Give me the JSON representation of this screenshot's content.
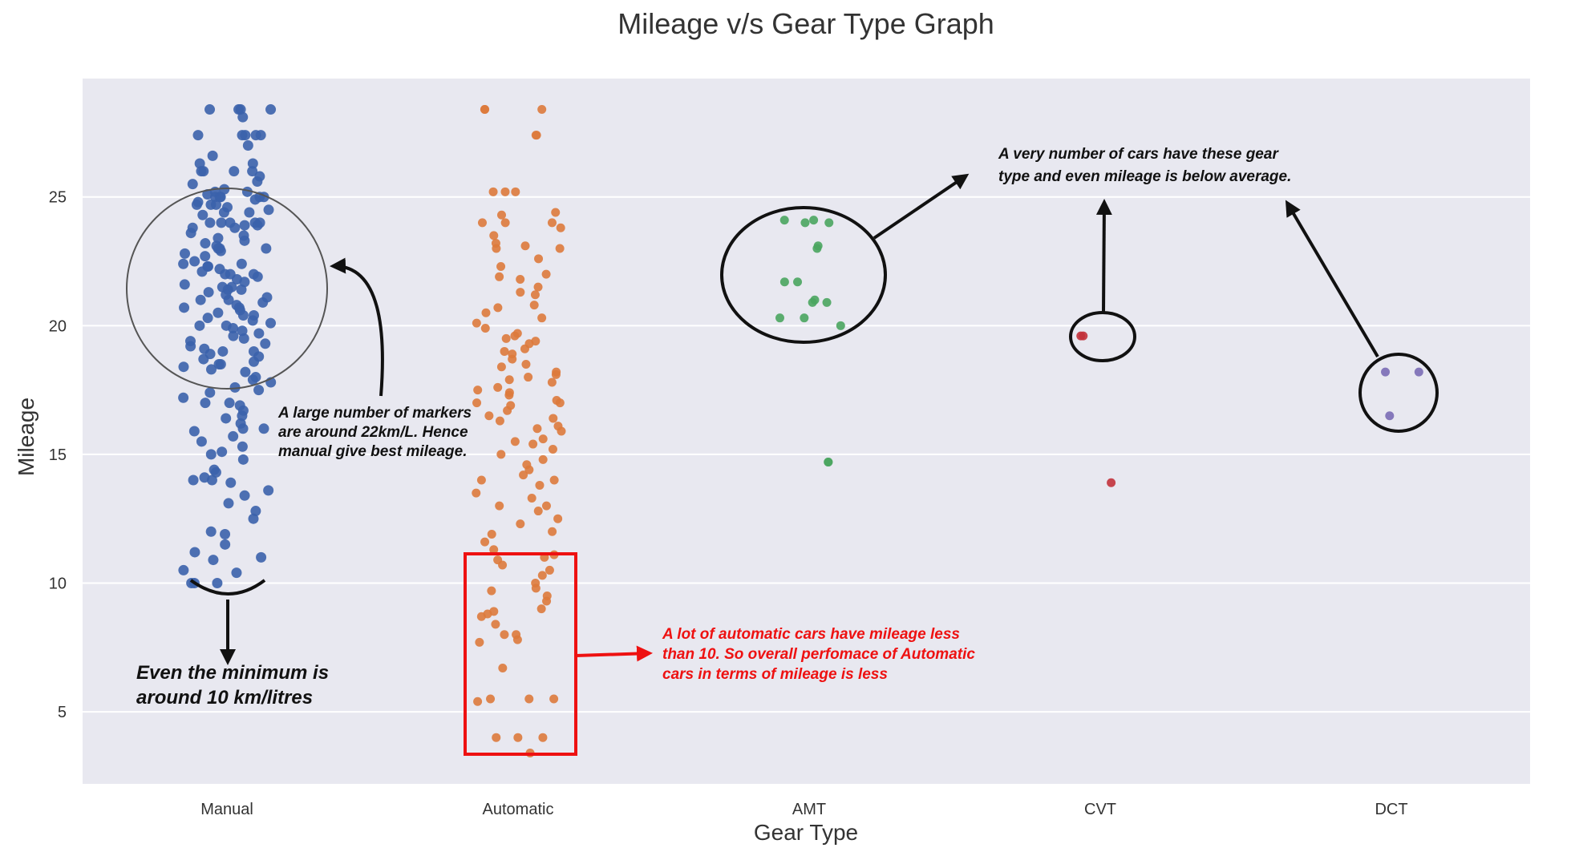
{
  "chart_data": {
    "type": "scatter",
    "title": "Mileage v/s Gear Type Graph",
    "xlabel": "Gear Type",
    "ylabel": "Mileage",
    "categories": [
      "Manual",
      "Automatic",
      "AMT",
      "CVT",
      "DCT"
    ],
    "yticks": [
      5,
      10,
      15,
      20,
      25
    ],
    "ylim": [
      2.2,
      29.6
    ],
    "grid": true,
    "colors": {
      "Manual": "#3b62ab",
      "Automatic": "#dd7a3c",
      "AMT": "#4aa55f",
      "CVT": "#c2323b",
      "DCT": "#7a6cb5",
      "background": "#e8e8f0",
      "grid": "#ffffff",
      "highlight_box": "#ee1111"
    },
    "series": [
      {
        "category": "Manual",
        "values": [
          28.4,
          28.4,
          28.4,
          28.4,
          28.1,
          27.4,
          27.4,
          27.4,
          27.4,
          27.4,
          27.0,
          26.6,
          26.3,
          26.3,
          26.0,
          26.0,
          26.0,
          26.0,
          25.8,
          25.6,
          25.5,
          25.3,
          25.2,
          25.2,
          25.1,
          25.0,
          25.0,
          25.0,
          25.0,
          25.0,
          24.9,
          24.8,
          24.7,
          24.7,
          24.7,
          24.6,
          24.5,
          24.4,
          24.4,
          24.3,
          24.0,
          24.0,
          24.0,
          24.0,
          24.0,
          23.9,
          23.9,
          23.8,
          23.8,
          23.6,
          23.5,
          23.4,
          23.3,
          23.2,
          23.1,
          23.0,
          23.0,
          23.0,
          22.9,
          22.8,
          22.7,
          22.5,
          22.4,
          22.4,
          22.3,
          22.3,
          22.2,
          22.1,
          22.0,
          22.0,
          22.0,
          21.9,
          21.8,
          21.7,
          21.6,
          21.5,
          21.5,
          21.4,
          21.4,
          21.3,
          21.2,
          21.1,
          21.0,
          21.0,
          20.9,
          20.8,
          20.7,
          20.7,
          20.6,
          20.5,
          20.4,
          20.4,
          20.3,
          20.2,
          20.1,
          20.0,
          20.0,
          19.9,
          19.8,
          19.7,
          19.6,
          19.5,
          19.4,
          19.3,
          19.2,
          19.1,
          19.0,
          19.0,
          18.9,
          18.8,
          18.7,
          18.6,
          18.5,
          18.5,
          18.4,
          18.3,
          18.2,
          18.0,
          17.9,
          17.8,
          17.6,
          17.5,
          17.4,
          17.2,
          17.0,
          17.0,
          16.9,
          16.7,
          16.5,
          16.4,
          16.2,
          16.0,
          16.0,
          15.9,
          15.7,
          15.5,
          15.3,
          15.1,
          15.0,
          14.8,
          14.4,
          14.3,
          14.1,
          14.0,
          14.0,
          13.9,
          13.6,
          13.4,
          13.1,
          12.8,
          12.5,
          12.0,
          11.9,
          11.5,
          11.2,
          11.0,
          10.9,
          10.5,
          10.4,
          10.0,
          10.0,
          10.0
        ]
      },
      {
        "category": "Automatic",
        "values": [
          28.4,
          28.4,
          28.4,
          27.4,
          27.4,
          25.2,
          25.2,
          25.2,
          24.4,
          24.3,
          24.0,
          24.0,
          24.0,
          23.8,
          23.5,
          23.2,
          23.1,
          23.0,
          23.0,
          22.6,
          22.3,
          22.0,
          21.9,
          21.8,
          21.5,
          21.3,
          21.2,
          20.8,
          20.7,
          20.5,
          20.3,
          20.1,
          19.9,
          19.7,
          19.6,
          19.5,
          19.4,
          19.3,
          19.1,
          19.0,
          18.9,
          18.7,
          18.5,
          18.4,
          18.2,
          18.1,
          18.0,
          17.9,
          17.8,
          17.6,
          17.5,
          17.4,
          17.3,
          17.1,
          17.0,
          17.0,
          16.9,
          16.7,
          16.5,
          16.4,
          16.3,
          16.1,
          16.0,
          15.9,
          15.6,
          15.5,
          15.4,
          15.2,
          15.0,
          14.8,
          14.6,
          14.4,
          14.2,
          14.0,
          14.0,
          13.8,
          13.5,
          13.3,
          13.0,
          13.0,
          12.8,
          12.5,
          12.3,
          12.0,
          11.9,
          11.6,
          11.3,
          11.1,
          11.0,
          10.9,
          10.7,
          10.5,
          10.3,
          10.0,
          9.8,
          9.7,
          9.5,
          9.3,
          9.0,
          8.9,
          8.8,
          8.7,
          8.4,
          8.0,
          8.0,
          7.8,
          7.7,
          6.7,
          5.5,
          5.5,
          5.5,
          5.4,
          4.0,
          4.0,
          4.0,
          3.4
        ]
      },
      {
        "category": "AMT",
        "values": [
          24.1,
          24.1,
          24.0,
          24.0,
          23.1,
          23.0,
          21.7,
          21.7,
          21.0,
          20.9,
          20.9,
          20.3,
          20.3,
          20.0,
          14.7,
          14.7
        ]
      },
      {
        "category": "CVT",
        "values": [
          19.6,
          19.6,
          13.9
        ]
      },
      {
        "category": "DCT",
        "values": [
          18.2,
          18.2,
          16.5
        ]
      }
    ],
    "annotations": {
      "manual_note": [
        "A large number of markers",
        "are around 22km/L. Hence",
        "manual give best mileage."
      ],
      "minimum_note": [
        "Even the minimum is",
        "around 10 km/litres"
      ],
      "automatic_note": [
        "A lot of automatic cars have mileage less",
        "than 10. So overall perfomace of Automatic",
        "cars in terms of mileage is less"
      ],
      "rare_note": [
        "A very number of cars have these gear",
        "type and even mileage is below average."
      ]
    }
  }
}
